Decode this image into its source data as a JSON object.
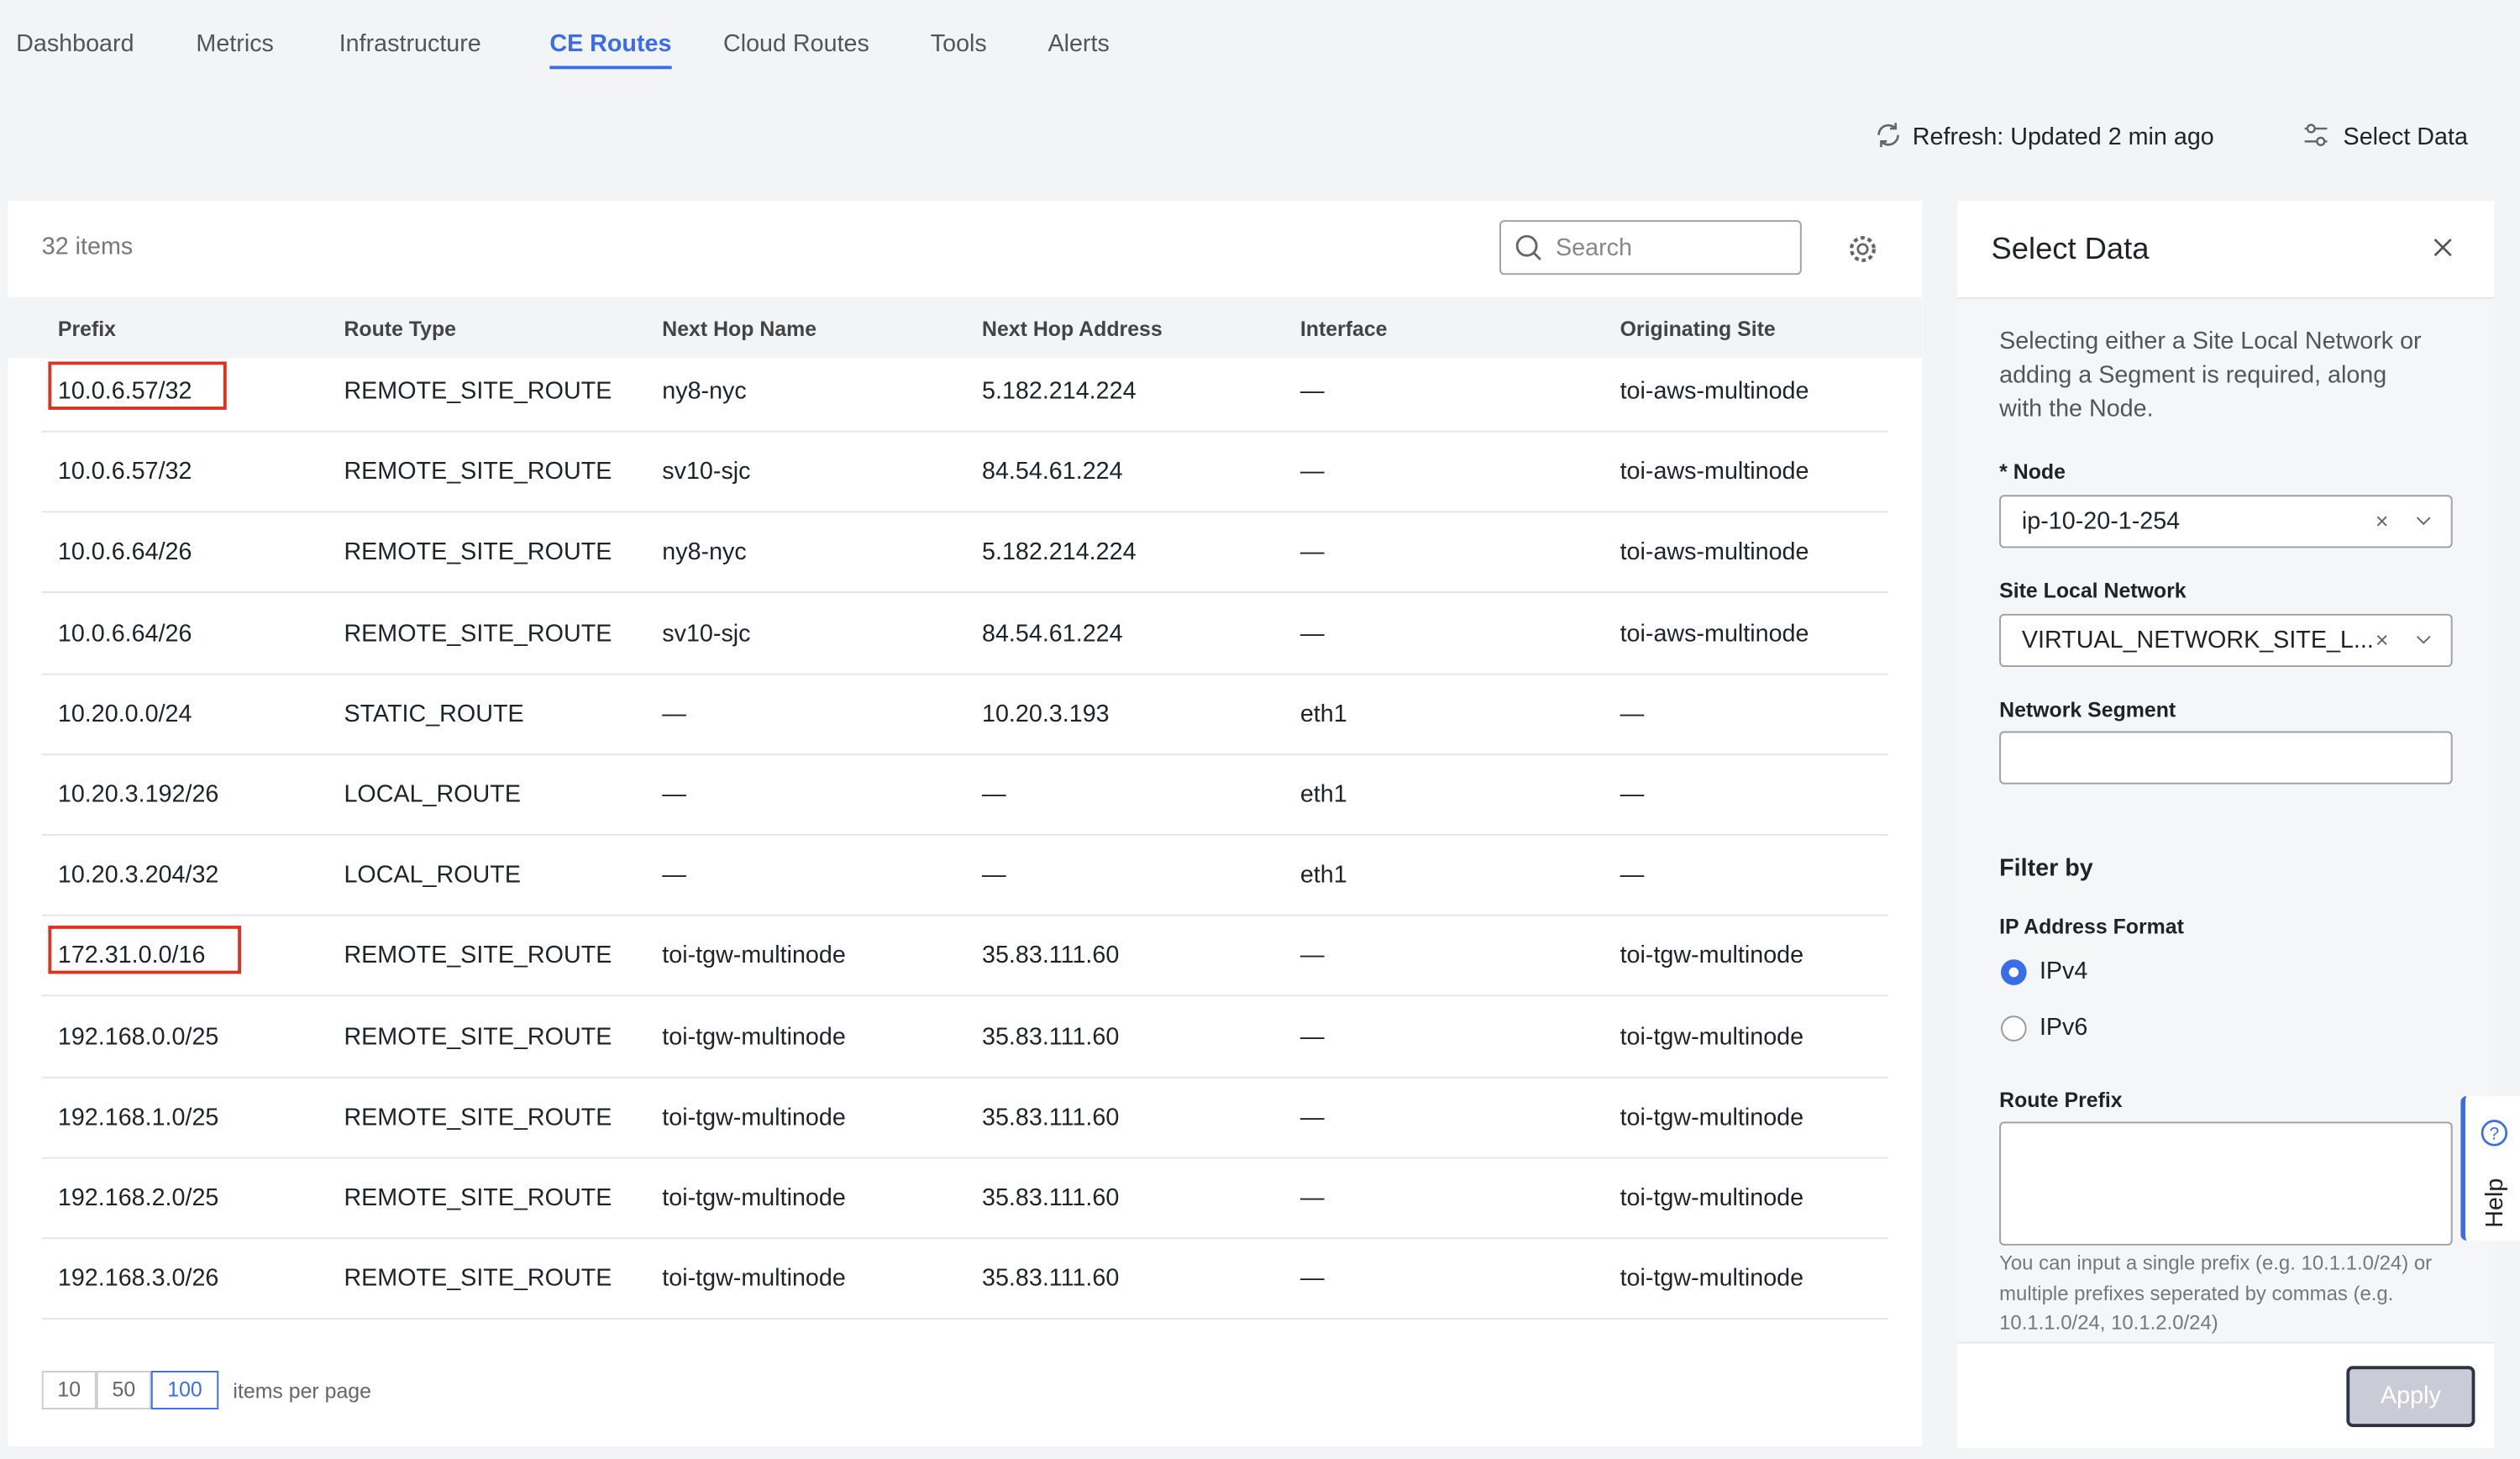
{
  "nav": {
    "tabs": [
      "Dashboard",
      "Metrics",
      "Infrastructure",
      "CE Routes",
      "Cloud Routes",
      "Tools",
      "Alerts"
    ],
    "active": 3
  },
  "toolbar": {
    "refresh": "Refresh: Updated 2 min ago",
    "select_data": "Select Data"
  },
  "table": {
    "count": "32 items",
    "search_placeholder": "Search",
    "columns": [
      "Prefix",
      "Route Type",
      "Next Hop Name",
      "Next Hop Address",
      "Interface",
      "Originating Site"
    ],
    "rows": [
      [
        "10.0.6.57/32",
        "REMOTE_SITE_ROUTE",
        "ny8-nyc",
        "5.182.214.224",
        "—",
        "toi-aws-multinode"
      ],
      [
        "10.0.6.57/32",
        "REMOTE_SITE_ROUTE",
        "sv10-sjc",
        "84.54.61.224",
        "—",
        "toi-aws-multinode"
      ],
      [
        "10.0.6.64/26",
        "REMOTE_SITE_ROUTE",
        "ny8-nyc",
        "5.182.214.224",
        "—",
        "toi-aws-multinode"
      ],
      [
        "10.0.6.64/26",
        "REMOTE_SITE_ROUTE",
        "sv10-sjc",
        "84.54.61.224",
        "—",
        "toi-aws-multinode"
      ],
      [
        "10.20.0.0/24",
        "STATIC_ROUTE",
        "—",
        "10.20.3.193",
        "eth1",
        "—"
      ],
      [
        "10.20.3.192/26",
        "LOCAL_ROUTE",
        "—",
        "—",
        "eth1",
        "—"
      ],
      [
        "10.20.3.204/32",
        "LOCAL_ROUTE",
        "—",
        "—",
        "eth1",
        "—"
      ],
      [
        "172.31.0.0/16",
        "REMOTE_SITE_ROUTE",
        "toi-tgw-multinode",
        "35.83.111.60",
        "—",
        "toi-tgw-multinode"
      ],
      [
        "192.168.0.0/25",
        "REMOTE_SITE_ROUTE",
        "toi-tgw-multinode",
        "35.83.111.60",
        "—",
        "toi-tgw-multinode"
      ],
      [
        "192.168.1.0/25",
        "REMOTE_SITE_ROUTE",
        "toi-tgw-multinode",
        "35.83.111.60",
        "—",
        "toi-tgw-multinode"
      ],
      [
        "192.168.2.0/25",
        "REMOTE_SITE_ROUTE",
        "toi-tgw-multinode",
        "35.83.111.60",
        "—",
        "toi-tgw-multinode"
      ],
      [
        "192.168.3.0/26",
        "REMOTE_SITE_ROUTE",
        "toi-tgw-multinode",
        "35.83.111.60",
        "—",
        "toi-tgw-multinode"
      ]
    ],
    "highlighted_rows": [
      0,
      7
    ]
  },
  "pagination": {
    "sizes": [
      "10",
      "50",
      "100"
    ],
    "selected": 2,
    "label": "items per page"
  },
  "panel": {
    "title": "Select Data",
    "description": [
      "Selecting either a Site Local Network or",
      "adding a Segment is required, along",
      "with the Node."
    ],
    "node_required": "*",
    "node_label": "Node",
    "node_value": "ip-10-20-1-254",
    "site_label": "Site Local Network",
    "site_value": "VIRTUAL_NETWORK_SITE_L...",
    "segment_label": "Network Segment",
    "filter_title": "Filter by",
    "ip_format_label": "IP Address Format",
    "ip_options": [
      "IPv4",
      "IPv6"
    ],
    "ip_selected": 0,
    "prefix_label": "Route Prefix",
    "prefix_help": [
      "You can input a single prefix (e.g. 10.1.1.0/24) or",
      "multiple prefixes seperated by commas (e.g.",
      "10.1.1.0/24, 10.1.2.0/24)"
    ],
    "apply": "Apply"
  },
  "help": "Help"
}
